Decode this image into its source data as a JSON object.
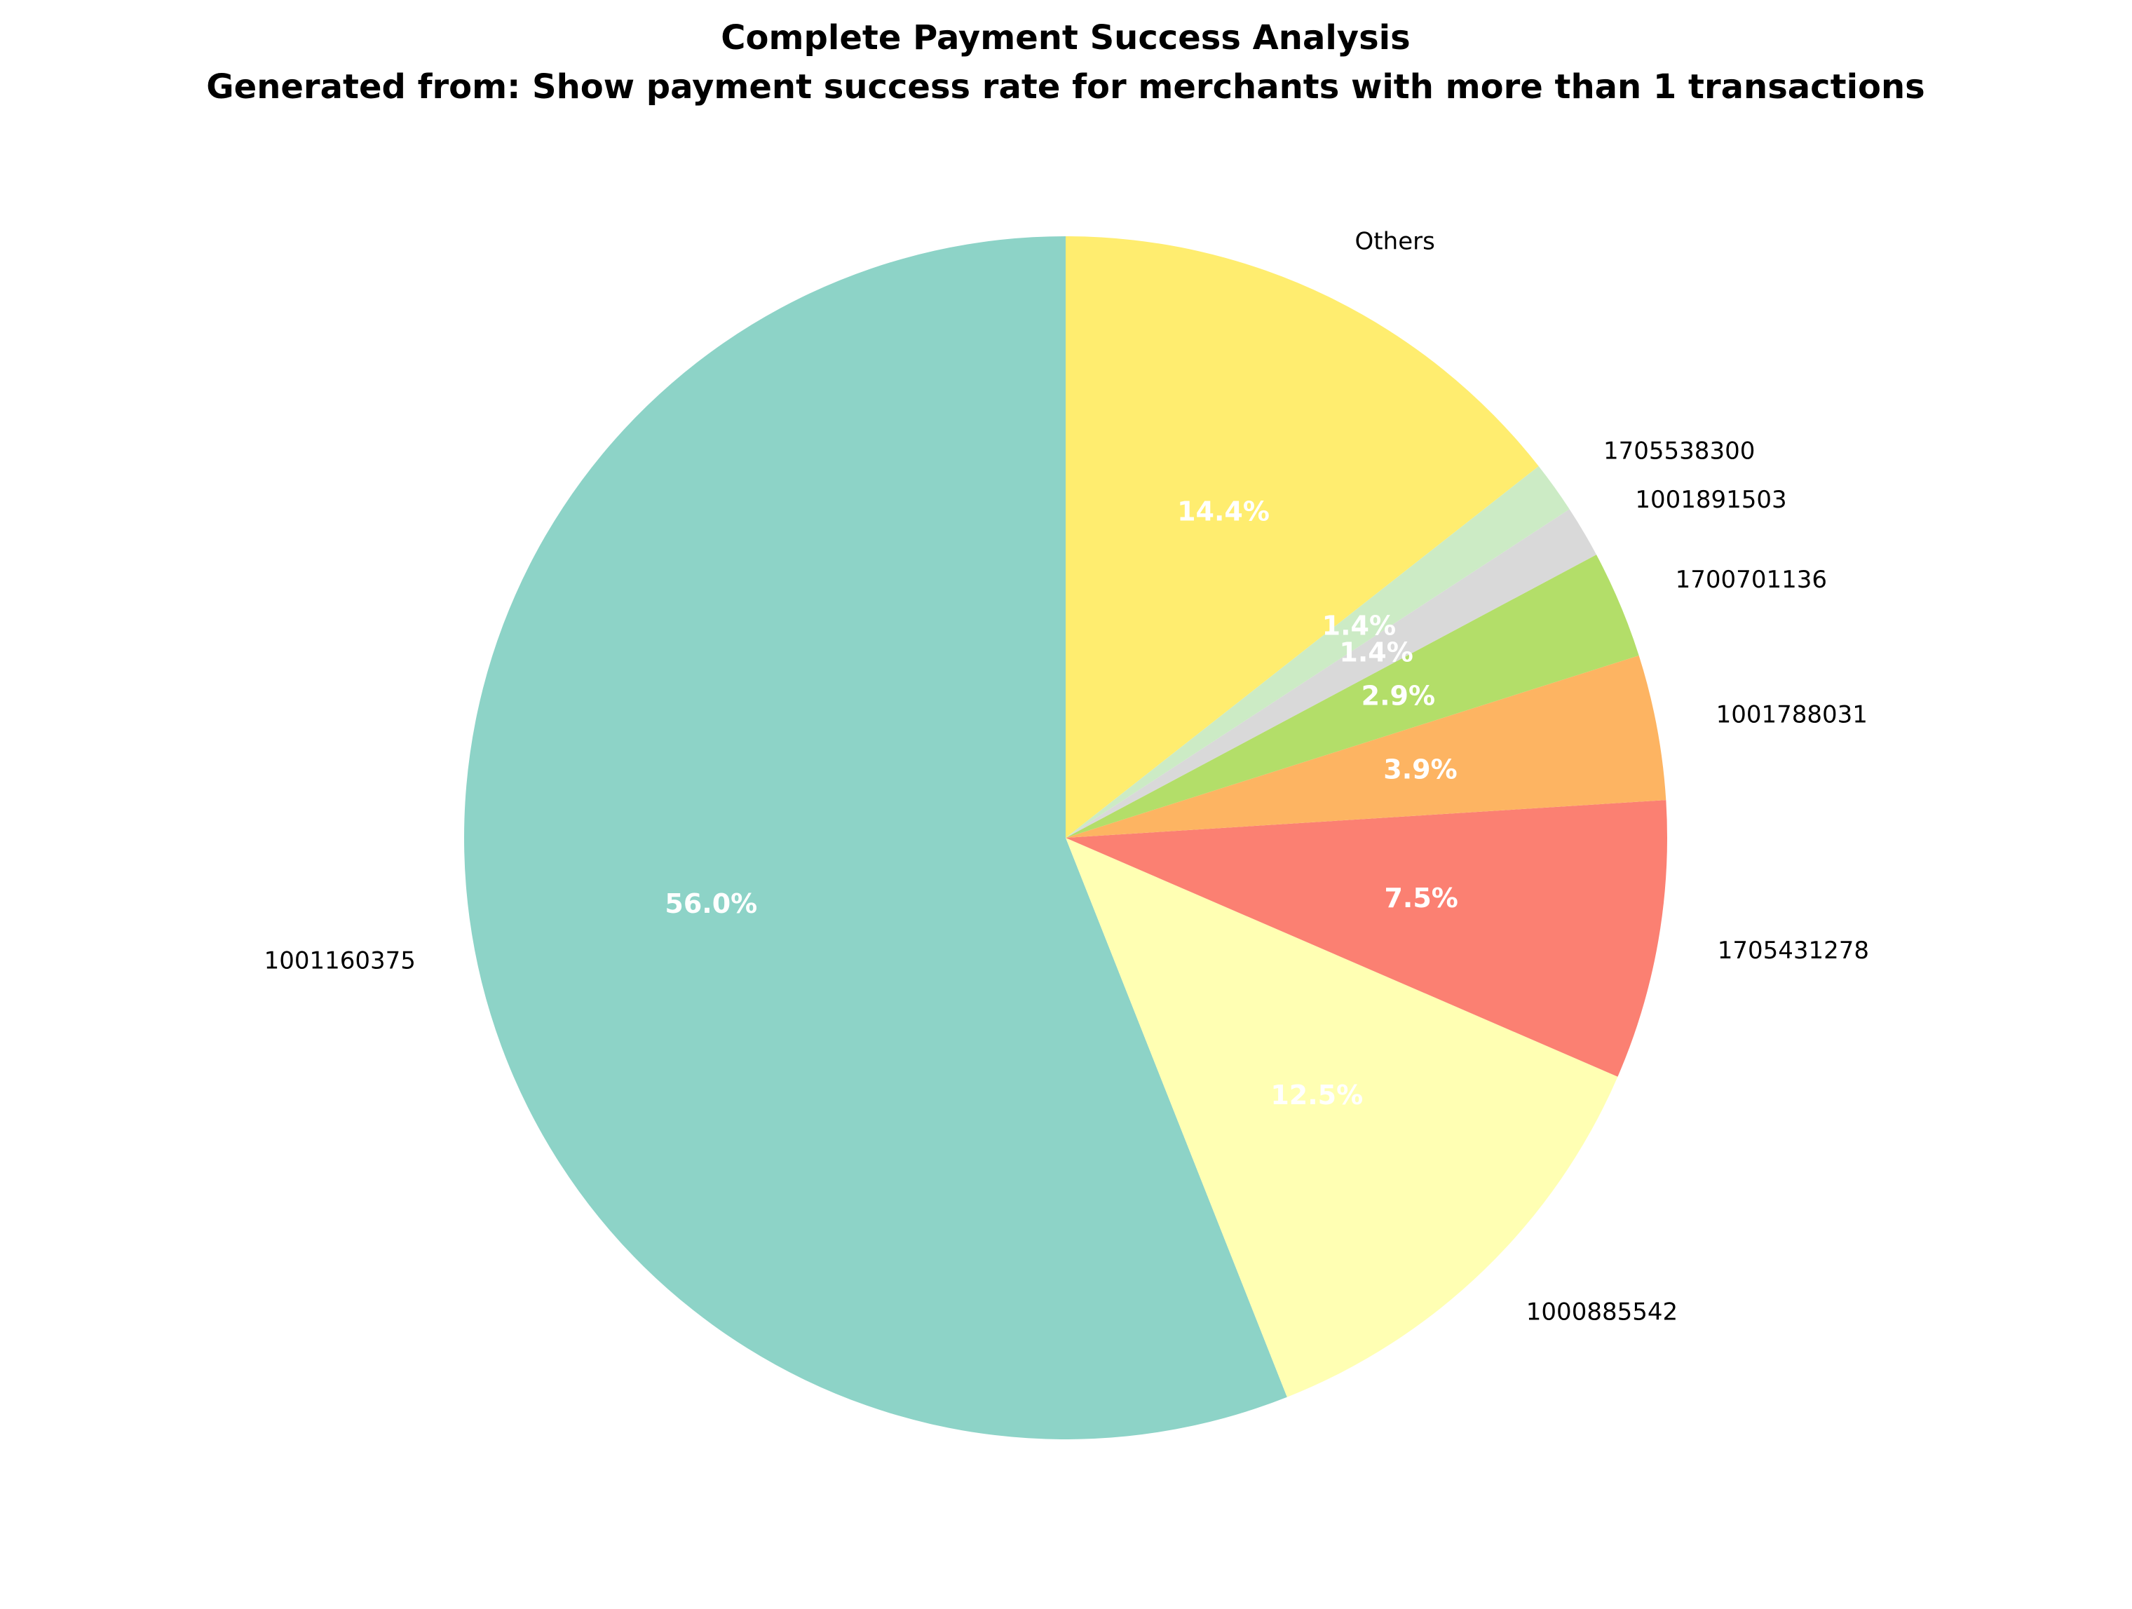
{
  "chart_data": {
    "type": "pie",
    "title": "Complete Payment Success Analysis",
    "subtitle": "Generated from: Show payment success rate for merchants with more than 1 transactions",
    "start_angle_deg": 90,
    "direction": "counterclockwise",
    "slices": [
      {
        "label": "1001160375",
        "value": 56.0,
        "pct_label": "56.0%",
        "color": "#8dd3c7"
      },
      {
        "label": "1000885542",
        "value": 12.5,
        "pct_label": "12.5%",
        "color": "#ffffb3"
      },
      {
        "label": "1705431278",
        "value": 7.5,
        "pct_label": "7.5%",
        "color": "#fb8072"
      },
      {
        "label": "1001788031",
        "value": 3.9,
        "pct_label": "3.9%",
        "color": "#fdb462"
      },
      {
        "label": "1700701136",
        "value": 2.9,
        "pct_label": "2.9%",
        "color": "#b3de69"
      },
      {
        "label": "1001891503",
        "value": 1.4,
        "pct_label": "1.4%",
        "color": "#d9d9d9"
      },
      {
        "label": "1705538300",
        "value": 1.4,
        "pct_label": "1.4%",
        "color": "#ccebc5"
      },
      {
        "label": "Others",
        "value": 14.4,
        "pct_label": "14.4%",
        "color": "#ffed6f"
      }
    ]
  }
}
